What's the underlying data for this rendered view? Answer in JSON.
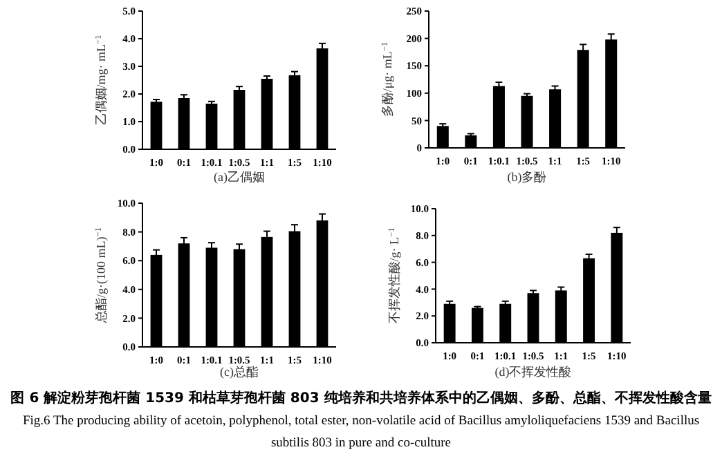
{
  "chart_data": [
    {
      "type": "bar",
      "xlabel": "(a)乙偶姻",
      "ylabel": "乙偶姻/mg· mL$^{−1}$",
      "categories": [
        "1:0",
        "0:1",
        "1:0.1",
        "1:0.5",
        "1:1",
        "1:5",
        "1:10"
      ],
      "values": [
        1.72,
        1.85,
        1.65,
        2.15,
        2.55,
        2.68,
        3.65
      ],
      "errors": [
        0.08,
        0.12,
        0.08,
        0.12,
        0.1,
        0.13,
        0.18
      ],
      "color": "#000000",
      "ylim": [
        0,
        5
      ],
      "yticks": [
        {
          "value": 0,
          "label": "0.0"
        },
        {
          "value": 1,
          "label": "1.0"
        },
        {
          "value": 2,
          "label": "2.0"
        },
        {
          "value": 3,
          "label": "3.0"
        },
        {
          "value": 4,
          "label": "4.0"
        },
        {
          "value": 5,
          "label": "5.0"
        }
      ]
    },
    {
      "type": "bar",
      "xlabel": "(b)多酚",
      "ylabel": "多酚/μg· mL$^{−1}$",
      "categories": [
        "1:0",
        "0:1",
        "1:0.1",
        "1:0.5",
        "1:1",
        "1:5",
        "1:10"
      ],
      "values": [
        40,
        23,
        113,
        95,
        107,
        179,
        198
      ],
      "errors": [
        4,
        3,
        7,
        4,
        6,
        10,
        10
      ],
      "color": "#000000",
      "ylim": [
        0,
        250
      ],
      "yticks": [
        0,
        50,
        100,
        150,
        200,
        250
      ]
    },
    {
      "type": "bar",
      "xlabel": "(c)总酯",
      "ylabel": "总酯/g·(100 mL)$^{−1}$",
      "categories": [
        "1:0",
        "0:1",
        "1:0.1",
        "1:0.5",
        "1:1",
        "1:5",
        "1:10"
      ],
      "values": [
        6.4,
        7.2,
        6.9,
        6.8,
        7.65,
        8.05,
        8.8
      ],
      "errors": [
        0.35,
        0.4,
        0.35,
        0.35,
        0.4,
        0.45,
        0.45
      ],
      "color": "#000000",
      "ylim": [
        0,
        10
      ],
      "yticks": [
        {
          "value": 0,
          "label": "0.0"
        },
        {
          "value": 2,
          "label": "2.0"
        },
        {
          "value": 4,
          "label": "4.0"
        },
        {
          "value": 6,
          "label": "6.0"
        },
        {
          "value": 8,
          "label": "8.0"
        },
        {
          "value": 10,
          "label": "10.0"
        }
      ]
    },
    {
      "type": "bar",
      "xlabel": "(d)不挥发性酸",
      "ylabel": "不挥发性酸/g· L$^{−1}$",
      "categories": [
        "1:0",
        "0:1",
        "1:0.1",
        "1:0.5",
        "1:1",
        "1:5",
        "1:10"
      ],
      "values": [
        2.9,
        2.6,
        2.9,
        3.7,
        3.9,
        6.3,
        8.2
      ],
      "errors": [
        0.2,
        0.1,
        0.2,
        0.2,
        0.25,
        0.3,
        0.4
      ],
      "color": "#000000",
      "ylim": [
        0,
        10
      ],
      "yticks": [
        {
          "value": 0,
          "label": "0.0"
        },
        {
          "value": 2,
          "label": "2.0"
        },
        {
          "value": 4,
          "label": "4.0"
        },
        {
          "value": 6,
          "label": "6.0"
        },
        {
          "value": 8,
          "label": "8.0"
        },
        {
          "value": 10,
          "label": "10.0"
        }
      ]
    },
    {
      "type": "other",
      "annotations": [
        "图 6  解淀粉芽孢杆菌 1539 和枯草芽孢杆菌 803 纯培养和共培养体系中的乙偶姻、多酚、总酯、不挥发性酸含量",
        "Fig.6  The producing ability of acetoin, polyphenol, total ester, non-volatile acid of Bacillus amyloliquefaciens 1539 and Bacillus subtilis 803 in pure and co-culture"
      ]
    }
  ]
}
